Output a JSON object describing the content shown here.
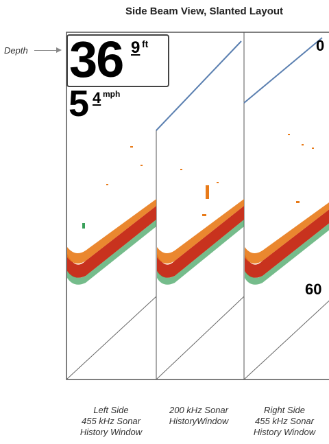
{
  "title": "Side Beam View, Slanted Layout",
  "depth_callout": "Depth",
  "readouts": {
    "depth_int": "36",
    "depth_dec": "9",
    "depth_unit": "ft",
    "speed_int": "5",
    "speed_dec": "4",
    "speed_unit": "mph"
  },
  "scale": {
    "top": "0",
    "bottom": "60"
  },
  "windows": [
    {
      "lines": [
        "Left Side",
        "455 kHz Sonar",
        "History Window"
      ]
    },
    {
      "lines": [
        "200 kHz Sonar",
        "HistoryWindow"
      ]
    },
    {
      "lines": [
        "Right Side",
        "455 kHz Sonar",
        "History Window"
      ]
    }
  ],
  "colors": {
    "sonar_red": "#c8321e",
    "sonar_orange": "#e87a18",
    "sonar_green": "#3aa05a",
    "bottom_line": "#5a7fb0"
  }
}
